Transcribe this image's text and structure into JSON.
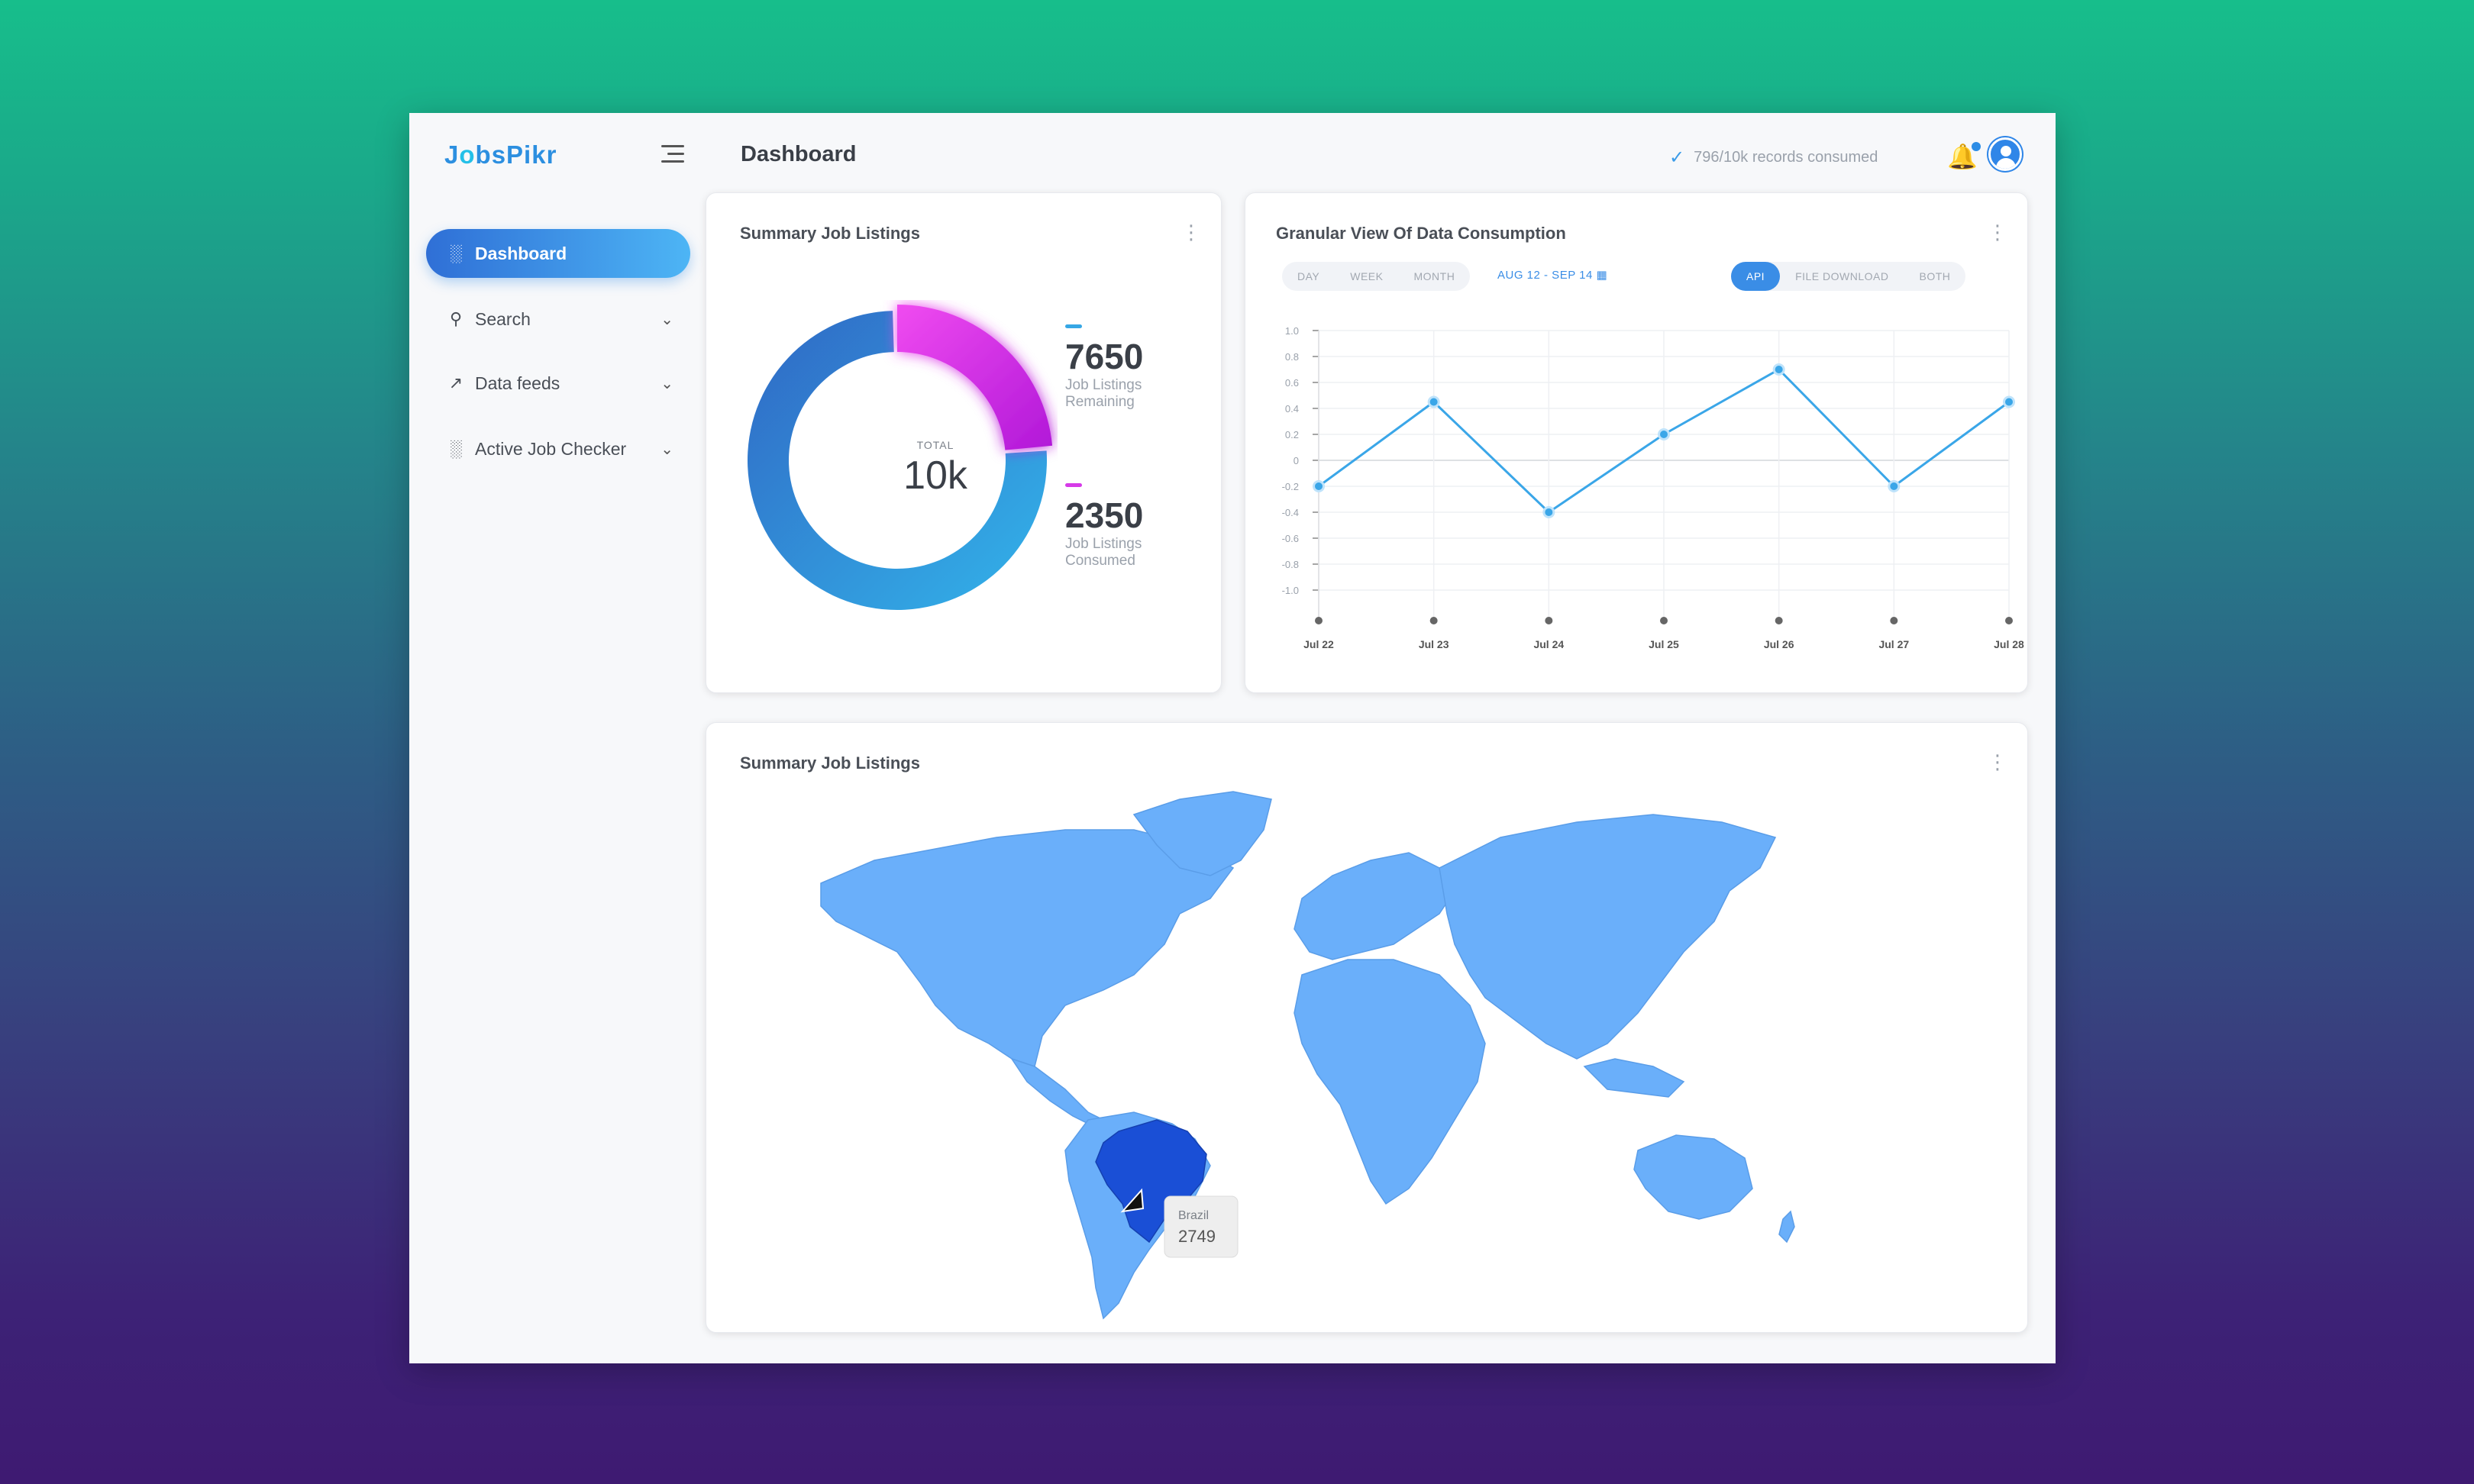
{
  "app": {
    "logo_prefix": "J",
    "logo_o": "o",
    "logo_rest": "bsPikr"
  },
  "sidebar": {
    "items": [
      {
        "label": "Dashboard",
        "icon": "bar-chart-icon",
        "active": true
      },
      {
        "label": "Search",
        "icon": "search-icon",
        "expandable": true
      },
      {
        "label": "Data feeds",
        "icon": "trend-line-icon",
        "expandable": true
      },
      {
        "label": "Active Job Checker",
        "icon": "bar-chart-icon",
        "expandable": true
      }
    ]
  },
  "header": {
    "title": "Dashboard",
    "records_consumed": "796/10k records consumed",
    "icons": [
      "check-icon",
      "bell-icon",
      "avatar-icon"
    ]
  },
  "summary_card": {
    "title": "Summary Job Listings",
    "total_label": "TOTAL",
    "total_value": "10k",
    "legend": [
      {
        "value": "7650",
        "label": "Job Listings Remaining",
        "color": "#36a7e5"
      },
      {
        "value": "2350",
        "label": "Job Listings Consumed",
        "color": "#d63ae8"
      }
    ]
  },
  "granular_card": {
    "title": "Granular View Of Data Consumption",
    "period_tabs": [
      "DAY",
      "WEEK",
      "MONTH"
    ],
    "date_range": "AUG 12 - SEP 14",
    "source_tabs": [
      "API",
      "FILE DOWNLOAD",
      "BOTH"
    ],
    "active_source": "API"
  },
  "map_card": {
    "title": "Summary Job Listings",
    "tooltip_country": "Brazil",
    "tooltip_value": "2749",
    "highlight_color": "#1a4fd6",
    "land_color": "#6aaffa"
  },
  "chart_data": {
    "type": "line",
    "x": [
      "Jul 22",
      "Jul 23",
      "Jul 24",
      "Jul 25",
      "Jul 26",
      "Jul 27",
      "Jul 28"
    ],
    "series": [
      {
        "values": [
          -0.2,
          0.45,
          -0.4,
          0.2,
          0.7,
          -0.2,
          0.45
        ]
      }
    ],
    "yticks": [
      "1.0",
      "0.8",
      "0.6",
      "0.4",
      "0.2",
      "0",
      "-0.2",
      "-0.4",
      "-0.6",
      "-0.8",
      "-1.0"
    ],
    "ylim": [
      -1,
      1
    ],
    "grid": true,
    "line_color": "#3aa6e8"
  }
}
